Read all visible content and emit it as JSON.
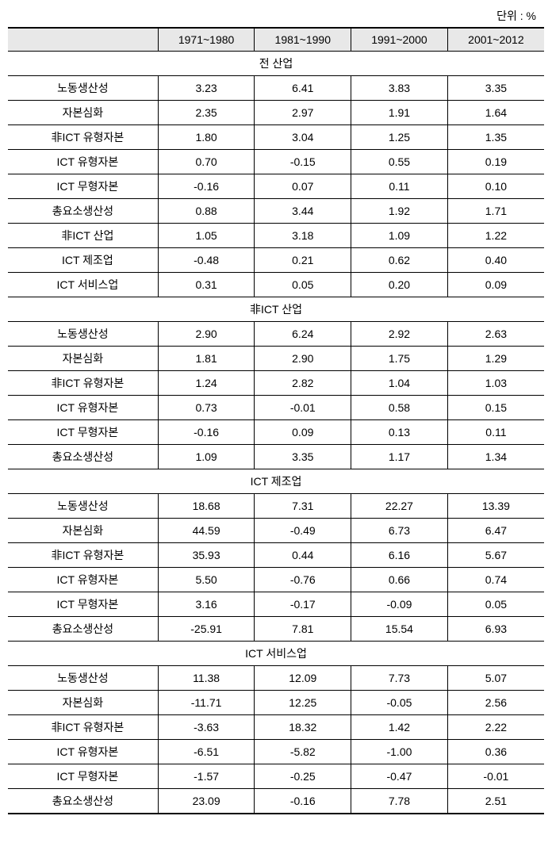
{
  "unit_label": "단위 : %",
  "columns": [
    "",
    "1971~1980",
    "1981~1990",
    "1991~2000",
    "2001~2012"
  ],
  "sections": [
    {
      "title": "전 산업",
      "rows": [
        {
          "label": "노동생산성",
          "indent": 0,
          "values": [
            "3.23",
            "6.41",
            "3.83",
            "3.35"
          ]
        },
        {
          "label": "자본심화",
          "indent": 0,
          "values": [
            "2.35",
            "2.97",
            "1.91",
            "1.64"
          ]
        },
        {
          "label": "非ICT 유형자본",
          "indent": 1,
          "values": [
            "1.80",
            "3.04",
            "1.25",
            "1.35"
          ]
        },
        {
          "label": "ICT 유형자본",
          "indent": 1,
          "values": [
            "0.70",
            "-0.15",
            "0.55",
            "0.19"
          ]
        },
        {
          "label": "ICT 무형자본",
          "indent": 1,
          "values": [
            "-0.16",
            "0.07",
            "0.11",
            "0.10"
          ]
        },
        {
          "label": "총요소생산성",
          "indent": 0,
          "values": [
            "0.88",
            "3.44",
            "1.92",
            "1.71"
          ]
        },
        {
          "label": "非ICT 산업",
          "indent": 1,
          "values": [
            "1.05",
            "3.18",
            "1.09",
            "1.22"
          ]
        },
        {
          "label": "ICT 제조업",
          "indent": 1,
          "values": [
            "-0.48",
            "0.21",
            "0.62",
            "0.40"
          ]
        },
        {
          "label": "ICT 서비스업",
          "indent": 1,
          "values": [
            "0.31",
            "0.05",
            "0.20",
            "0.09"
          ]
        }
      ]
    },
    {
      "title": "非ICT 산업",
      "rows": [
        {
          "label": "노동생산성",
          "indent": 0,
          "values": [
            "2.90",
            "6.24",
            "2.92",
            "2.63"
          ]
        },
        {
          "label": "자본심화",
          "indent": 0,
          "values": [
            "1.81",
            "2.90",
            "1.75",
            "1.29"
          ]
        },
        {
          "label": "非ICT 유형자본",
          "indent": 1,
          "values": [
            "1.24",
            "2.82",
            "1.04",
            "1.03"
          ]
        },
        {
          "label": "ICT 유형자본",
          "indent": 1,
          "values": [
            "0.73",
            "-0.01",
            "0.58",
            "0.15"
          ]
        },
        {
          "label": "ICT 무형자본",
          "indent": 1,
          "values": [
            "-0.16",
            "0.09",
            "0.13",
            "0.11"
          ]
        },
        {
          "label": "총요소생산성",
          "indent": 0,
          "values": [
            "1.09",
            "3.35",
            "1.17",
            "1.34"
          ]
        }
      ]
    },
    {
      "title": "ICT 제조업",
      "rows": [
        {
          "label": "노동생산성",
          "indent": 0,
          "values": [
            "18.68",
            "7.31",
            "22.27",
            "13.39"
          ]
        },
        {
          "label": "자본심화",
          "indent": 0,
          "values": [
            "44.59",
            "-0.49",
            "6.73",
            "6.47"
          ]
        },
        {
          "label": "非ICT 유형자본",
          "indent": 1,
          "values": [
            "35.93",
            "0.44",
            "6.16",
            "5.67"
          ]
        },
        {
          "label": "ICT 유형자본",
          "indent": 1,
          "values": [
            "5.50",
            "-0.76",
            "0.66",
            "0.74"
          ]
        },
        {
          "label": "ICT 무형자본",
          "indent": 1,
          "values": [
            "3.16",
            "-0.17",
            "-0.09",
            "0.05"
          ]
        },
        {
          "label": "총요소생산성",
          "indent": 0,
          "values": [
            "-25.91",
            "7.81",
            "15.54",
            "6.93"
          ]
        }
      ]
    },
    {
      "title": "ICT 서비스업",
      "rows": [
        {
          "label": "노동생산성",
          "indent": 0,
          "values": [
            "11.38",
            "12.09",
            "7.73",
            "5.07"
          ]
        },
        {
          "label": "자본심화",
          "indent": 0,
          "values": [
            "-11.71",
            "12.25",
            "-0.05",
            "2.56"
          ]
        },
        {
          "label": "非ICT 유형자본",
          "indent": 1,
          "values": [
            "-3.63",
            "18.32",
            "1.42",
            "2.22"
          ]
        },
        {
          "label": "ICT 유형자본",
          "indent": 1,
          "values": [
            "-6.51",
            "-5.82",
            "-1.00",
            "0.36"
          ]
        },
        {
          "label": "ICT 무형자본",
          "indent": 1,
          "values": [
            "-1.57",
            "-0.25",
            "-0.47",
            "-0.01"
          ]
        },
        {
          "label": "총요소생산성",
          "indent": 0,
          "values": [
            "23.09",
            "-0.16",
            "7.78",
            "2.51"
          ]
        }
      ]
    }
  ],
  "col_widths": [
    "28%",
    "18%",
    "18%",
    "18%",
    "18%"
  ]
}
